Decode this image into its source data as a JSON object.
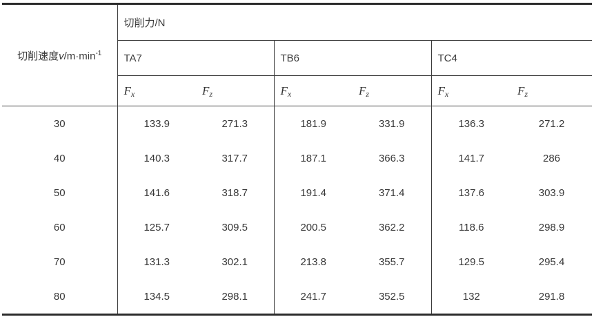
{
  "table": {
    "speed_label": {
      "prefix": "切削速度",
      "var": "v",
      "unit": "/m·min",
      "exp": "-1"
    },
    "force_header": "切削力/N",
    "materials": [
      "TA7",
      "TB6",
      "TC4"
    ],
    "force_cols": [
      {
        "base": "F",
        "sub": "x"
      },
      {
        "base": "F",
        "sub": "z"
      }
    ],
    "rows": [
      {
        "speed": "30",
        "ta7_fx": "133.9",
        "ta7_fz": "271.3",
        "tb6_fx": "181.9",
        "tb6_fz": "331.9",
        "tc4_fx": "136.3",
        "tc4_fz": "271.2"
      },
      {
        "speed": "40",
        "ta7_fx": "140.3",
        "ta7_fz": "317.7",
        "tb6_fx": "187.1",
        "tb6_fz": "366.3",
        "tc4_fx": "141.7",
        "tc4_fz": "286"
      },
      {
        "speed": "50",
        "ta7_fx": "141.6",
        "ta7_fz": "318.7",
        "tb6_fx": "191.4",
        "tb6_fz": "371.4",
        "tc4_fx": "137.6",
        "tc4_fz": "303.9"
      },
      {
        "speed": "60",
        "ta7_fx": "125.7",
        "ta7_fz": "309.5",
        "tb6_fx": "200.5",
        "tb6_fz": "362.2",
        "tc4_fx": "118.6",
        "tc4_fz": "298.9"
      },
      {
        "speed": "70",
        "ta7_fx": "131.3",
        "ta7_fz": "302.1",
        "tb6_fx": "213.8",
        "tb6_fz": "355.7",
        "tc4_fx": "129.5",
        "tc4_fz": "295.4"
      },
      {
        "speed": "80",
        "ta7_fx": "134.5",
        "ta7_fz": "298.1",
        "tb6_fx": "241.7",
        "tb6_fz": "352.5",
        "tc4_fx": "132",
        "tc4_fz": "291.8"
      }
    ]
  }
}
